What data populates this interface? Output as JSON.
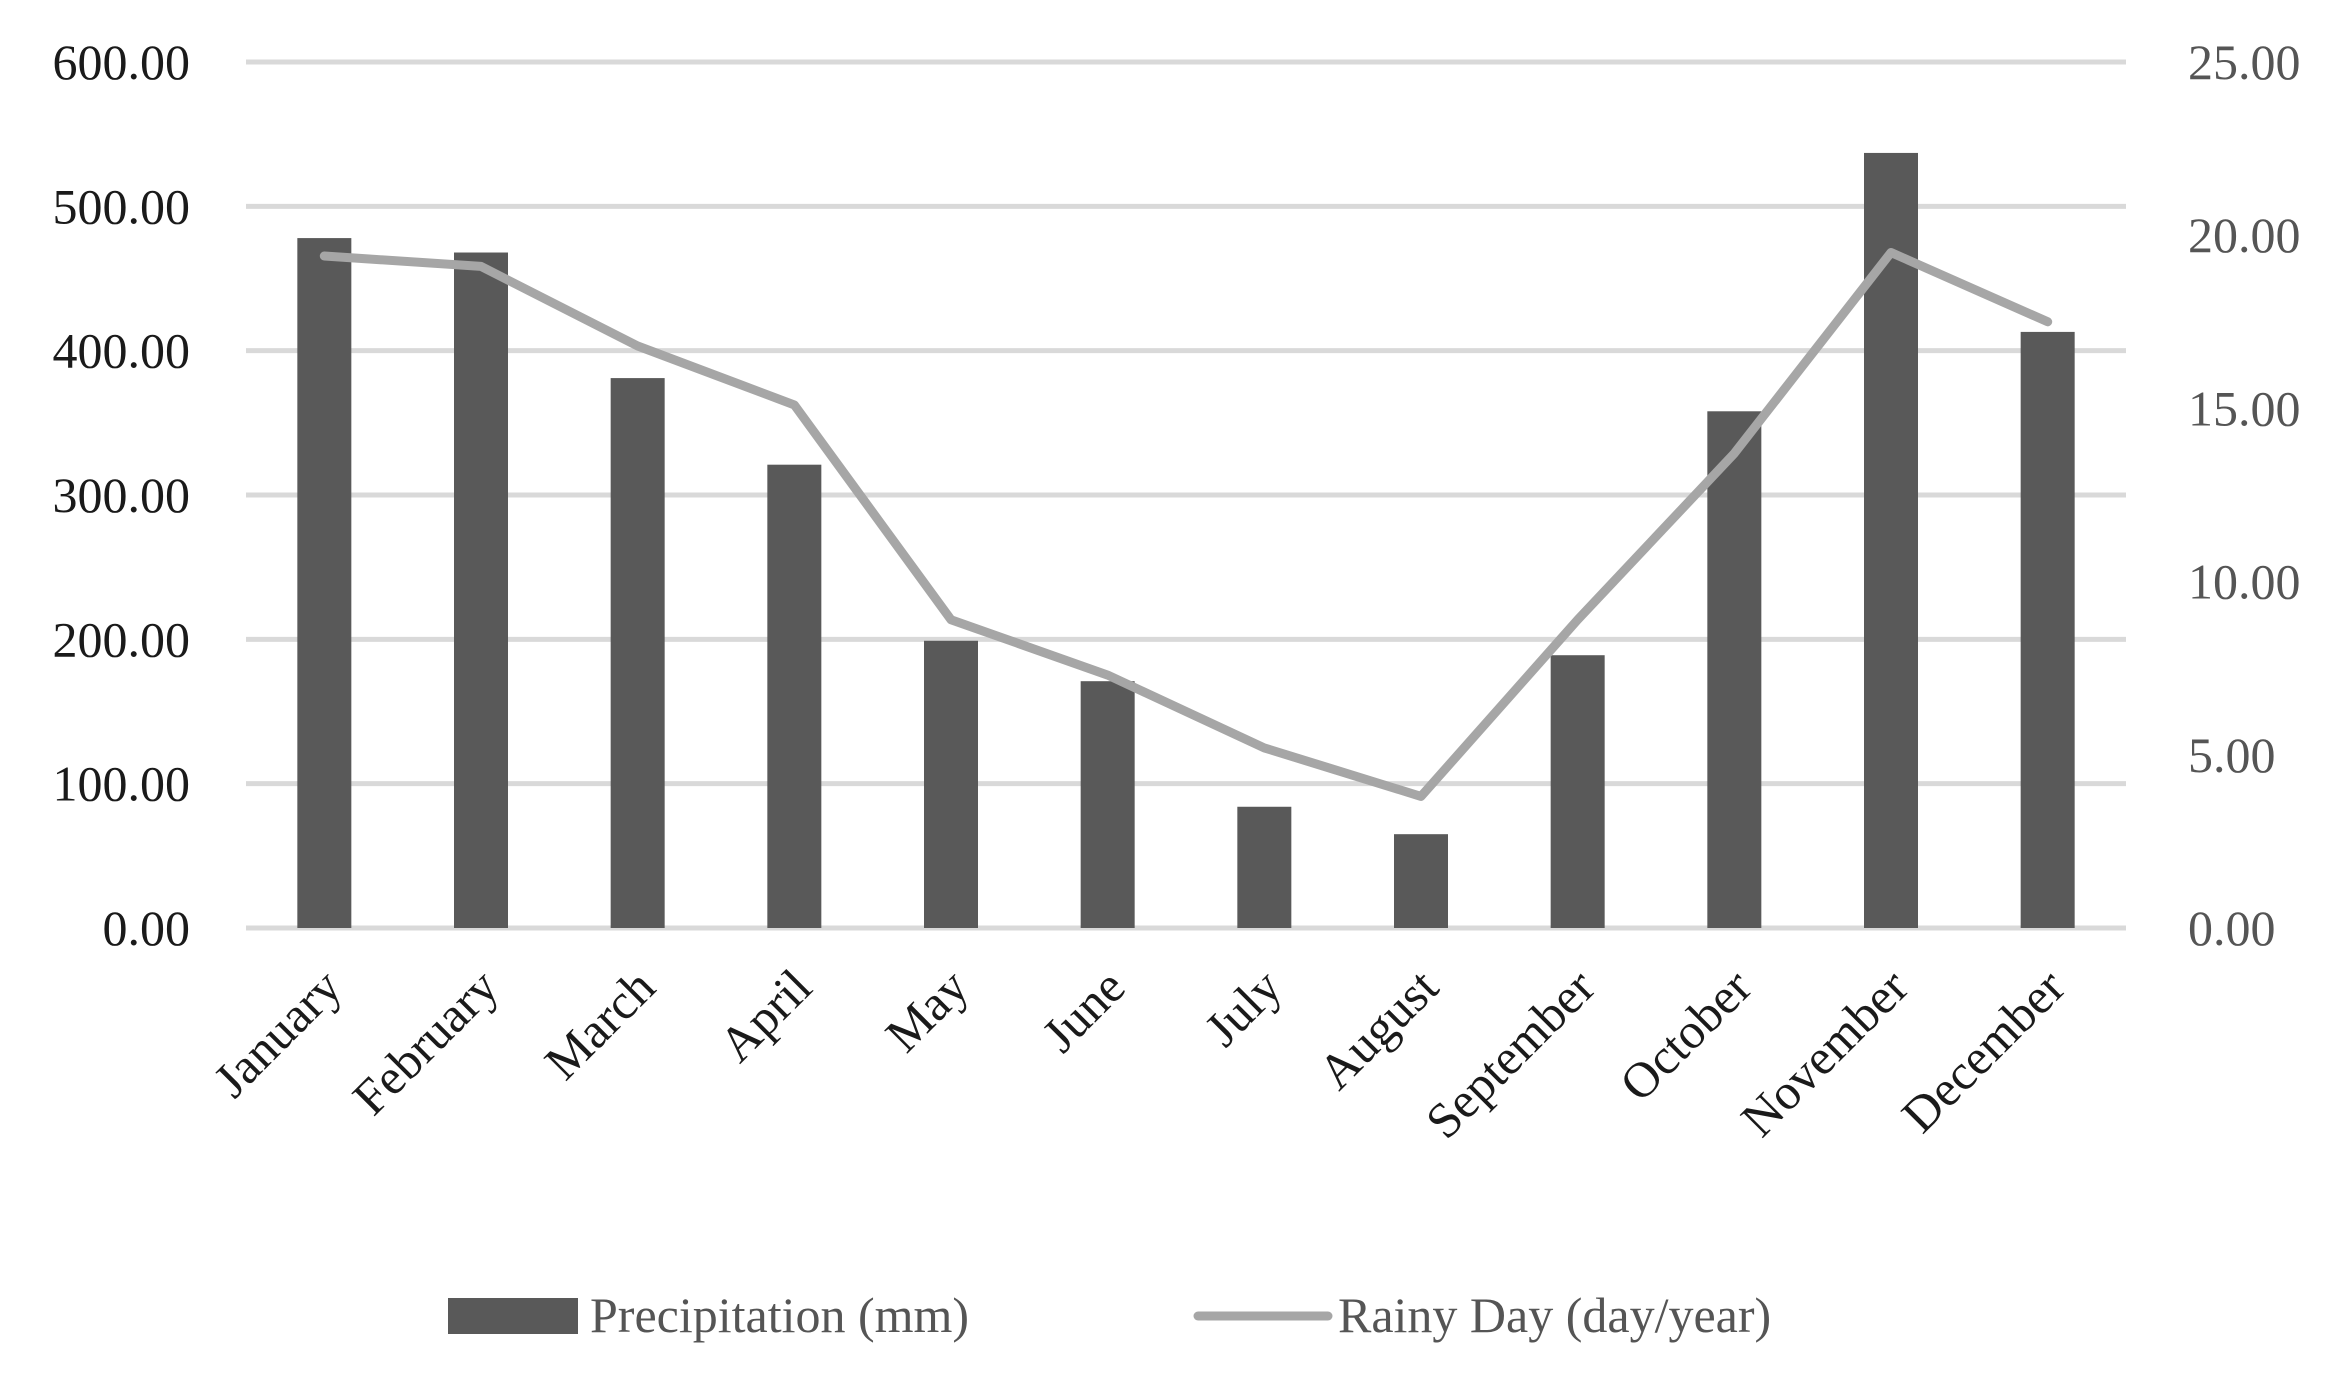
{
  "chart_data": {
    "type": "bar",
    "title": "",
    "xlabel": "",
    "ylabel": "",
    "categories": [
      "January",
      "February",
      "March",
      "April",
      "May",
      "June",
      "July",
      "August",
      "September",
      "October",
      "November",
      "December"
    ],
    "series": [
      {
        "name": "Precipitation (mm)",
        "type": "bar",
        "axis": "left",
        "color": "#595959",
        "values": [
          478,
          468,
          381,
          321,
          199,
          171,
          84,
          65,
          189,
          358,
          537,
          413
        ]
      },
      {
        "name": "Rainy Day (day/year)",
        "type": "line",
        "axis": "right",
        "color": "#a6a6a6",
        "values": [
          19.4,
          19.1,
          16.8,
          15.1,
          8.9,
          7.3,
          5.2,
          3.8,
          8.9,
          13.7,
          19.5,
          17.5
        ]
      }
    ],
    "ylim": [
      0,
      600
    ],
    "y2lim": [
      0,
      25
    ],
    "yticks": [
      "0.00",
      "100.00",
      "200.00",
      "300.00",
      "400.00",
      "500.00",
      "600.00"
    ],
    "y2ticks": [
      "0.00",
      "5.00",
      "10.00",
      "15.00",
      "20.00",
      "25.00"
    ],
    "grid": true,
    "legend": "bottom",
    "gridline_color": "#d9d9d9"
  }
}
